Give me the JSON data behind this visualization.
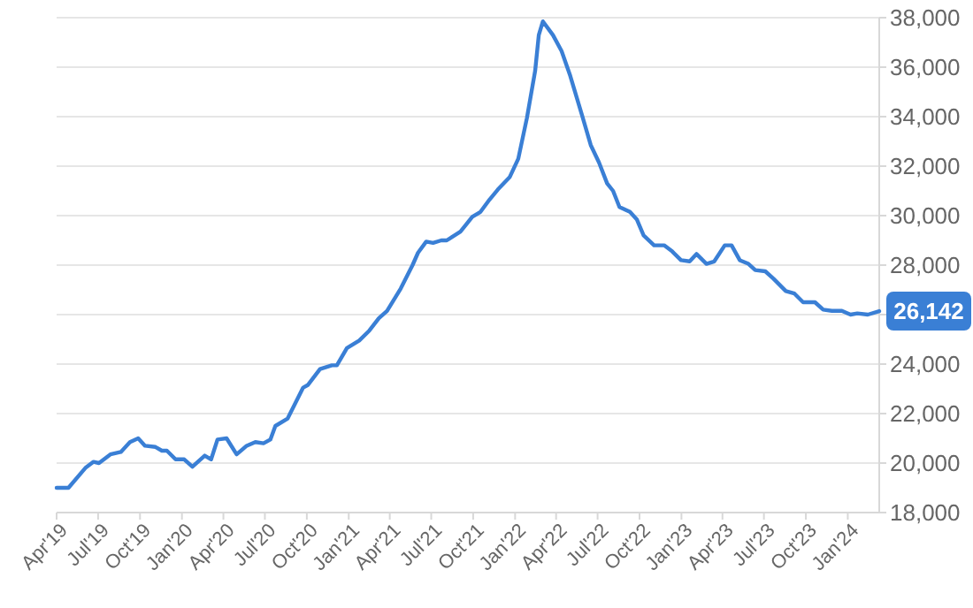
{
  "chart_data": {
    "type": "line",
    "x": [
      "2019-04-01",
      "2019-04-27",
      "2019-06-03",
      "2019-06-21",
      "2019-07-03",
      "2019-07-28",
      "2019-08-20",
      "2019-09-09",
      "2019-09-27",
      "2019-10-12",
      "2019-11-04",
      "2019-11-18",
      "2019-11-29",
      "2019-12-18",
      "2020-01-06",
      "2020-01-24",
      "2020-02-20",
      "2020-03-05",
      "2020-03-19",
      "2020-04-08",
      "2020-04-30",
      "2020-05-22",
      "2020-06-10",
      "2020-06-28",
      "2020-07-13",
      "2020-07-24",
      "2020-08-20",
      "2020-09-23",
      "2020-10-03",
      "2020-10-30",
      "2020-11-25",
      "2020-12-06",
      "2020-12-28",
      "2021-01-24",
      "2021-02-15",
      "2021-03-08",
      "2021-03-26",
      "2021-04-25",
      "2021-05-21",
      "2021-06-02",
      "2021-06-20",
      "2021-07-05",
      "2021-07-23",
      "2021-08-04",
      "2021-09-03",
      "2021-09-29",
      "2021-10-17",
      "2021-11-06",
      "2021-11-24",
      "2021-12-20",
      "2022-01-08",
      "2022-01-27",
      "2022-02-14",
      "2022-02-22",
      "2022-03-03",
      "2022-03-25",
      "2022-04-13",
      "2022-05-02",
      "2022-05-28",
      "2022-06-16",
      "2022-07-04",
      "2022-07-22",
      "2022-08-04",
      "2022-08-18",
      "2022-09-10",
      "2022-09-25",
      "2022-10-10",
      "2022-11-02",
      "2022-11-24",
      "2022-12-12",
      "2022-12-31",
      "2023-01-19",
      "2023-02-03",
      "2023-02-25",
      "2023-03-14",
      "2023-04-06",
      "2023-04-21",
      "2023-05-09",
      "2023-05-28",
      "2023-06-12",
      "2023-07-04",
      "2023-07-22",
      "2023-08-18",
      "2023-09-06",
      "2023-09-25",
      "2023-10-21",
      "2023-11-08",
      "2023-11-27",
      "2023-12-19",
      "2024-01-07",
      "2024-01-22",
      "2024-02-14",
      "2024-03-10"
    ],
    "series": [
      {
        "color": "#3a7fd5",
        "values": [
          19000,
          19000,
          19800,
          20050,
          20000,
          20350,
          20450,
          20850,
          21000,
          20700,
          20650,
          20500,
          20500,
          20150,
          20150,
          19850,
          20300,
          20150,
          20950,
          21000,
          20350,
          20700,
          20850,
          20800,
          20950,
          21500,
          21800,
          23050,
          23150,
          23800,
          23950,
          23950,
          24650,
          24950,
          25350,
          25850,
          26150,
          27050,
          28000,
          28500,
          28950,
          28900,
          29000,
          29000,
          29350,
          29950,
          30150,
          30650,
          31050,
          31550,
          32300,
          33950,
          35850,
          37300,
          37850,
          37300,
          36650,
          35650,
          34050,
          32850,
          32150,
          31300,
          31000,
          30350,
          30150,
          29850,
          29200,
          28800,
          28800,
          28550,
          28200,
          28150,
          28450,
          28050,
          28150,
          28800,
          28800,
          28200,
          28050,
          27800,
          27750,
          27450,
          26950,
          26850,
          26500,
          26500,
          26200,
          26150,
          26150,
          26000,
          26050,
          26000,
          26142
        ]
      }
    ],
    "xlim": [
      "2019-04-01",
      "2024-03-10"
    ],
    "xticks": [
      {
        "value": "2019-04-01",
        "label": "Apr'19"
      },
      {
        "value": "2019-07-01",
        "label": "Jul'19"
      },
      {
        "value": "2019-10-01",
        "label": "Oct'19"
      },
      {
        "value": "2020-01-01",
        "label": "Jan'20"
      },
      {
        "value": "2020-04-01",
        "label": "Apr'20"
      },
      {
        "value": "2020-07-01",
        "label": "Jul'20"
      },
      {
        "value": "2020-10-01",
        "label": "Oct'20"
      },
      {
        "value": "2021-01-01",
        "label": "Jan'21"
      },
      {
        "value": "2021-04-01",
        "label": "Apr'21"
      },
      {
        "value": "2021-07-01",
        "label": "Jul'21"
      },
      {
        "value": "2021-10-01",
        "label": "Oct'21"
      },
      {
        "value": "2022-01-01",
        "label": "Jan'22"
      },
      {
        "value": "2022-04-01",
        "label": "Apr'22"
      },
      {
        "value": "2022-07-01",
        "label": "Jul'22"
      },
      {
        "value": "2022-10-01",
        "label": "Oct'22"
      },
      {
        "value": "2023-01-01",
        "label": "Jan'23"
      },
      {
        "value": "2023-04-01",
        "label": "Apr'23"
      },
      {
        "value": "2023-07-01",
        "label": "Jul'23"
      },
      {
        "value": "2023-10-01",
        "label": "Oct'23"
      },
      {
        "value": "2024-01-01",
        "label": "Jan'24"
      }
    ],
    "ylim": [
      18000,
      38000
    ],
    "yticks": [
      {
        "value": 18000,
        "label": "18,000"
      },
      {
        "value": 20000,
        "label": "20,000"
      },
      {
        "value": 22000,
        "label": "22,000"
      },
      {
        "value": 24000,
        "label": "24,000"
      },
      {
        "value": 26000,
        "label": null
      },
      {
        "value": 28000,
        "label": "28,000"
      },
      {
        "value": 30000,
        "label": "30,000"
      },
      {
        "value": 32000,
        "label": "32,000"
      },
      {
        "value": 34000,
        "label": "34,000"
      },
      {
        "value": 36000,
        "label": "36,000"
      },
      {
        "value": 38000,
        "label": "38,000"
      }
    ],
    "grid": "y",
    "annotations": [
      {
        "text": "26,142",
        "x": "2024-03-10",
        "y": 26142
      }
    ]
  }
}
